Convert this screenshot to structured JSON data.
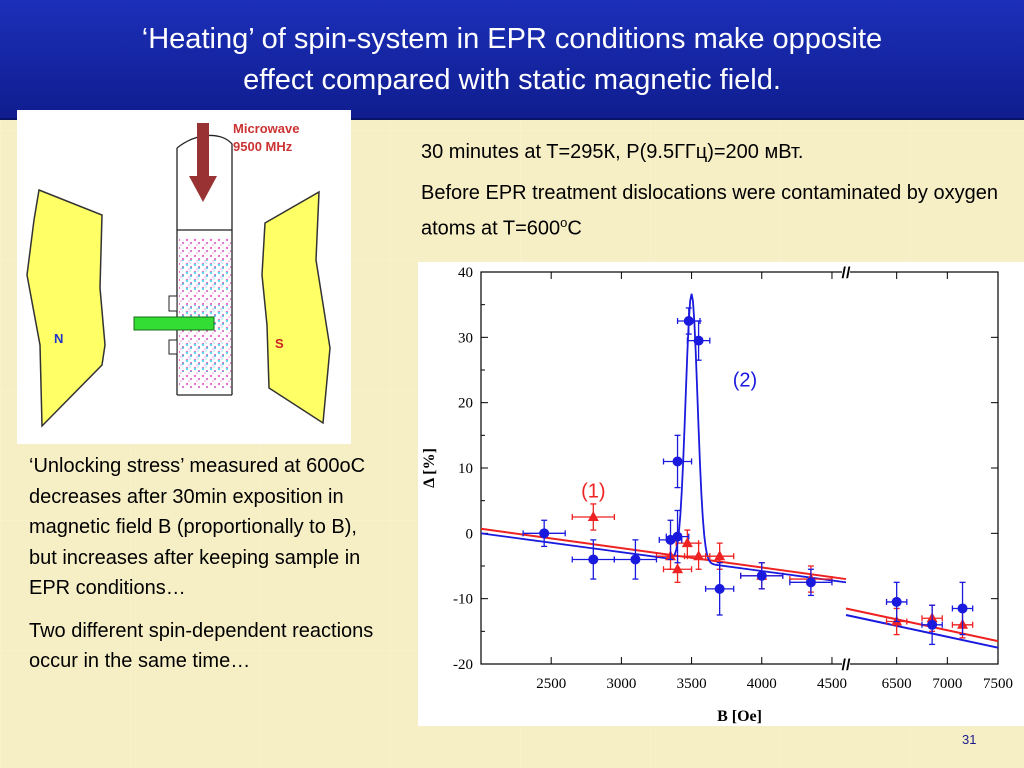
{
  "title": {
    "line1": "‘Heating’ of spin-system in EPR conditions make opposite",
    "line2": "effect compared with static magnetic field."
  },
  "diagram": {
    "microwave_label_line1": "Microwave",
    "microwave_label_line2": "9500 MHz",
    "pole_n": "N",
    "pole_s": "S",
    "colors": {
      "pole": "#ffff66",
      "arrow": "#993333",
      "sample": "#33dd33",
      "microwave_text": "#cc3333",
      "pole_text_n": "#2233cc",
      "pole_text_s": "#cc2222"
    }
  },
  "info": {
    "line1": "30 minutes at T=295К, P(9.5ГГц)=200 мВт.",
    "line2_main": "Before EPR treatment dislocations were contaminated by oxygen atoms at T=600",
    "line2_sup": "o",
    "line2_end": "C"
  },
  "left_text": {
    "p1": "‘Unlocking stress’ measured at 600oC decreases after 30min exposition in magnetic field B (proportionally to B), but increases after keeping sample in EPR conditions…",
    "p2": "Two different spin-dependent reactions occur in the same time…"
  },
  "page_number": "31",
  "chart_data": {
    "type": "scatter",
    "xlabel": "B [Oe]",
    "ylabel": "Δ [%]",
    "ylim": [
      -20,
      40
    ],
    "y_ticks": [
      40,
      30,
      20,
      10,
      0,
      -10,
      -20
    ],
    "x_segments": [
      {
        "xlim": [
          2000,
          4600
        ],
        "ticks": [
          2500,
          3000,
          3500,
          4000,
          4500
        ]
      },
      {
        "xlim": [
          6000,
          7500
        ],
        "ticks": [
          6500,
          7000,
          7500
        ]
      }
    ],
    "axis_break": "//",
    "series": [
      {
        "name": "(1)",
        "color": "#ee2222",
        "marker": "triangle",
        "points": [
          {
            "x": 2800,
            "y": 2.5,
            "xerr": 150,
            "yerr": 2
          },
          {
            "x": 3350,
            "y": -3.5,
            "xerr": 100,
            "yerr": 2
          },
          {
            "x": 3400,
            "y": -5.5,
            "xerr": 100,
            "yerr": 2
          },
          {
            "x": 3470,
            "y": -1.5,
            "xerr": 80,
            "yerr": 2
          },
          {
            "x": 3550,
            "y": -3.5,
            "xerr": 80,
            "yerr": 2
          },
          {
            "x": 3700,
            "y": -3.5,
            "xerr": 100,
            "yerr": 2
          },
          {
            "x": 4000,
            "y": -6.5,
            "xerr": 150,
            "yerr": 2
          },
          {
            "x": 4350,
            "y": -7,
            "xerr": 150,
            "yerr": 2
          },
          {
            "x": 6500,
            "y": -13.5,
            "xerr": 100,
            "yerr": 2
          },
          {
            "x": 6850,
            "y": -13,
            "xerr": 100,
            "yerr": 2
          },
          {
            "x": 7150,
            "y": -14,
            "xerr": 100,
            "yerr": 2
          }
        ],
        "fit_segments": [
          {
            "x": [
              2000,
              4600
            ],
            "y": [
              0.7,
              -7.0
            ]
          },
          {
            "x": [
              6000,
              7500
            ],
            "y": [
              -11.5,
              -16.5
            ]
          }
        ]
      },
      {
        "name": "(2)",
        "color": "#1a1adf",
        "marker": "circle",
        "points": [
          {
            "x": 2450,
            "y": 0,
            "xerr": 150,
            "yerr": 2
          },
          {
            "x": 2800,
            "y": -4,
            "xerr": 150,
            "yerr": 3
          },
          {
            "x": 3100,
            "y": -4,
            "xerr": 150,
            "yerr": 3
          },
          {
            "x": 3350,
            "y": -1,
            "xerr": 80,
            "yerr": 3
          },
          {
            "x": 3400,
            "y": -0.5,
            "xerr": 80,
            "yerr": 4
          },
          {
            "x": 3400,
            "y": 11,
            "xerr": 100,
            "yerr": 4
          },
          {
            "x": 3480,
            "y": 32.5,
            "xerr": 80,
            "yerr": 2
          },
          {
            "x": 3550,
            "y": 29.5,
            "xerr": 80,
            "yerr": 3
          },
          {
            "x": 3700,
            "y": -8.5,
            "xerr": 100,
            "yerr": 4
          },
          {
            "x": 4000,
            "y": -6.5,
            "xerr": 150,
            "yerr": 2
          },
          {
            "x": 4350,
            "y": -7.5,
            "xerr": 150,
            "yerr": 2
          },
          {
            "x": 6500,
            "y": -10.5,
            "xerr": 100,
            "yerr": 3
          },
          {
            "x": 6850,
            "y": -14,
            "xerr": 100,
            "yerr": 3
          },
          {
            "x": 7150,
            "y": -11.5,
            "xerr": 100,
            "yerr": 4
          }
        ],
        "fit_segments": [
          {
            "x": [
              2000,
              4600
            ],
            "y": [
              0,
              -7.5
            ]
          },
          {
            "x": [
              6000,
              7500
            ],
            "y": [
              -12.5,
              -17.5
            ]
          }
        ],
        "peak": {
          "center": 3500,
          "height": 41,
          "width": 60
        }
      }
    ],
    "annotations": [
      "(1)",
      "(2)"
    ]
  }
}
